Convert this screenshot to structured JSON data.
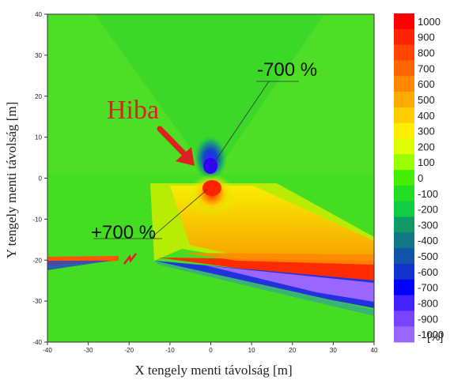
{
  "chart_data": {
    "type": "heatmap",
    "xlabel": "X tengely menti távolság [m]",
    "ylabel": "Y tengely menti távolság [m]",
    "xlim": [
      -40,
      40
    ],
    "ylim": [
      -40,
      40
    ],
    "x_ticks": [
      -40,
      -30,
      -20,
      -10,
      0,
      10,
      20,
      30,
      40
    ],
    "y_ticks": [
      -40,
      -30,
      -20,
      -10,
      0,
      10,
      20,
      30,
      40
    ],
    "colorbar": {
      "unit": "[%]",
      "min": -1000,
      "max": 1000,
      "ticks": [
        1000,
        900,
        800,
        700,
        600,
        500,
        400,
        300,
        200,
        100,
        0,
        -100,
        -200,
        -300,
        -400,
        -500,
        -600,
        -700,
        -800,
        -900,
        -1000
      ],
      "colors": [
        "#ff0000",
        "#ff2200",
        "#ff4400",
        "#ff6600",
        "#ff8800",
        "#ffaa00",
        "#ffcc00",
        "#ffee00",
        "#ddff00",
        "#99ff00",
        "#44ee00",
        "#22dd22",
        "#11cc44",
        "#119966",
        "#117788",
        "#1155aa",
        "#1133cc",
        "#0000ff",
        "#4422ff",
        "#7744ff",
        "#9966ff"
      ]
    },
    "features": [
      {
        "name": "negative_peak",
        "x": 0,
        "y": 3,
        "value": -700
      },
      {
        "name": "positive_peak",
        "x": 0,
        "y": -2,
        "value": 700
      },
      {
        "name": "fault_marker",
        "x": -20,
        "y": -20
      }
    ],
    "annotations": {
      "fault_label": "Hiba",
      "neg_label": "-700 %",
      "pos_label": "+700 %"
    }
  }
}
